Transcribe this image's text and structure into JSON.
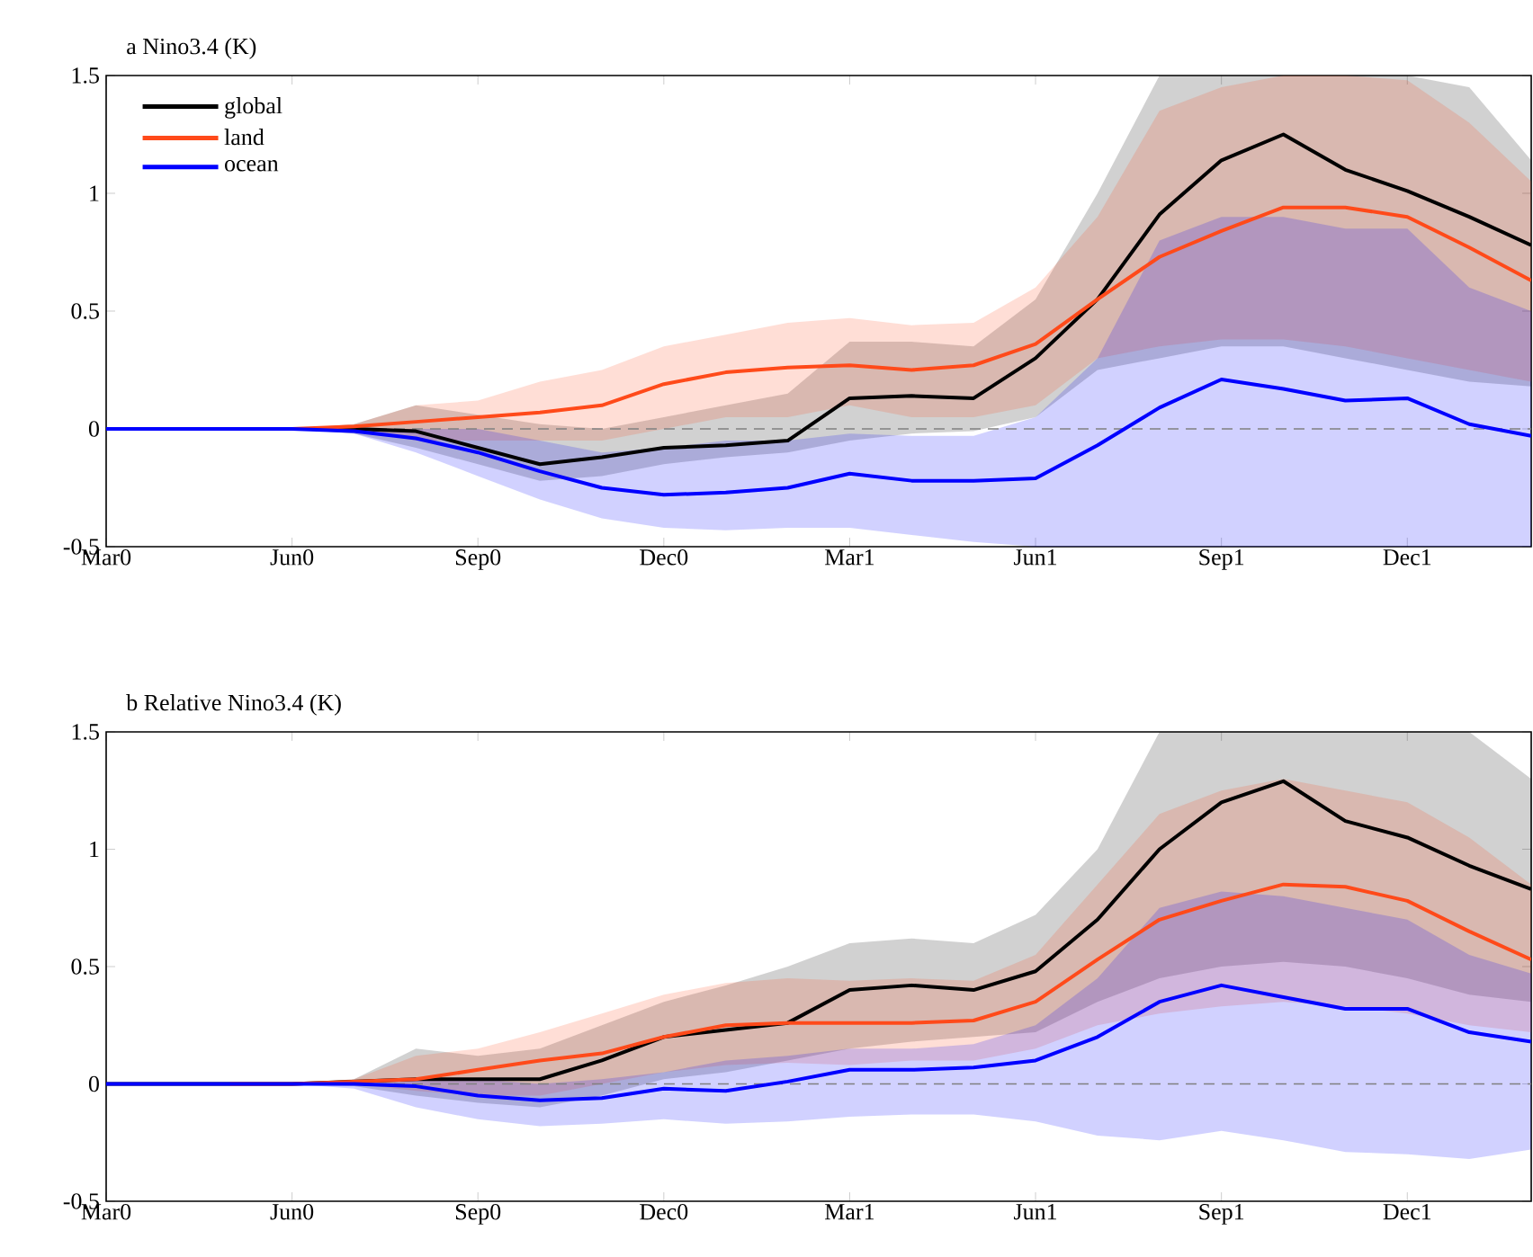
{
  "chart_data": [
    {
      "type": "line",
      "title": "a Nino3.4 (K)",
      "categories": [
        "Mar0",
        null,
        null,
        "Jun0",
        null,
        null,
        "Sep0",
        null,
        null,
        "Dec0",
        null,
        null,
        "Mar1",
        null,
        null,
        "Jun1",
        null,
        null,
        "Sep1",
        null,
        null,
        "Dec1",
        null,
        null
      ],
      "ylim": [
        -0.5,
        1.5
      ],
      "yticks": [
        -0.5,
        0,
        0.5,
        1,
        1.5
      ],
      "legend": "top left",
      "grid": false,
      "marker": "none",
      "line_style": "solid",
      "ref_lines": [
        {
          "axis": "y",
          "value": 0,
          "color": "#808080",
          "line_style": "dashed"
        }
      ],
      "series": [
        {
          "name": "global",
          "color": "#000000",
          "values": [
            0,
            0,
            0,
            0,
            0,
            -0.01,
            -0.08,
            -0.15,
            -0.12,
            -0.08,
            -0.07,
            -0.05,
            0.13,
            0.14,
            0.13,
            0.3,
            0.55,
            0.91,
            1.14,
            1.25,
            1.1,
            1.01,
            0.9,
            0.78
          ],
          "upper": [
            0,
            0,
            0,
            0,
            0.02,
            0.1,
            0.06,
            0.02,
            0.0,
            0.05,
            0.1,
            0.15,
            0.37,
            0.37,
            0.35,
            0.55,
            1.0,
            1.5,
            1.5,
            1.5,
            1.5,
            1.5,
            1.45,
            1.14
          ],
          "lower": [
            0,
            0,
            0,
            0,
            -0.02,
            -0.08,
            -0.15,
            -0.22,
            -0.2,
            -0.15,
            -0.12,
            -0.1,
            -0.05,
            -0.02,
            -0.01,
            0.05,
            0.25,
            0.3,
            0.35,
            0.35,
            0.3,
            0.25,
            0.2,
            0.18
          ]
        },
        {
          "name": "land",
          "color": "#ff4a1a",
          "values": [
            null,
            null,
            0,
            0,
            0.01,
            0.03,
            0.05,
            0.07,
            0.1,
            0.19,
            0.24,
            0.26,
            0.27,
            0.25,
            0.27,
            0.36,
            0.55,
            0.73,
            0.84,
            0.94,
            0.94,
            0.9,
            0.77,
            0.63
          ],
          "upper": [
            0,
            0,
            0,
            0,
            0.02,
            0.1,
            0.12,
            0.2,
            0.25,
            0.35,
            0.4,
            0.45,
            0.47,
            0.44,
            0.45,
            0.6,
            0.9,
            1.35,
            1.45,
            1.5,
            1.5,
            1.48,
            1.3,
            1.05
          ],
          "lower": [
            0,
            0,
            0,
            0,
            0,
            -0.05,
            -0.05,
            -0.05,
            -0.05,
            0,
            0.05,
            0.05,
            0.1,
            0.05,
            0.05,
            0.1,
            0.3,
            0.35,
            0.38,
            0.38,
            0.35,
            0.3,
            0.25,
            0.2
          ]
        },
        {
          "name": "ocean",
          "color": "#0000ff",
          "values": [
            0,
            0,
            0,
            0,
            -0.01,
            -0.04,
            -0.1,
            -0.18,
            -0.25,
            -0.28,
            -0.27,
            -0.25,
            -0.19,
            -0.22,
            -0.22,
            -0.21,
            -0.07,
            0.09,
            0.21,
            0.17,
            0.12,
            0.13,
            0.02,
            -0.03
          ],
          "upper": [
            0,
            0,
            0,
            0,
            0,
            0,
            0,
            -0.05,
            -0.1,
            -0.08,
            -0.05,
            -0.05,
            -0.02,
            -0.03,
            -0.03,
            0.05,
            0.3,
            0.8,
            0.9,
            0.9,
            0.85,
            0.85,
            0.6,
            0.5
          ],
          "lower": [
            0,
            0,
            0,
            0,
            -0.02,
            -0.1,
            -0.2,
            -0.3,
            -0.38,
            -0.42,
            -0.43,
            -0.42,
            -0.42,
            -0.45,
            -0.48,
            -0.5,
            -0.5,
            -0.5,
            -0.5,
            -0.5,
            -0.5,
            -0.5,
            -0.5,
            -0.5
          ]
        }
      ]
    },
    {
      "type": "line",
      "title": "b Relative Nino3.4 (K)",
      "categories": [
        "Mar0",
        null,
        null,
        "Jun0",
        null,
        null,
        "Sep0",
        null,
        null,
        "Dec0",
        null,
        null,
        "Mar1",
        null,
        null,
        "Jun1",
        null,
        null,
        "Sep1",
        null,
        null,
        "Dec1",
        null,
        null
      ],
      "ylim": [
        -0.5,
        1.5
      ],
      "yticks": [
        -0.5,
        0,
        0.5,
        1,
        1.5
      ],
      "grid": false,
      "marker": "none",
      "line_style": "solid",
      "ref_lines": [
        {
          "axis": "y",
          "value": 0,
          "color": "#808080",
          "line_style": "dashed"
        }
      ],
      "series": [
        {
          "color": "#000000",
          "values": [
            0,
            0,
            0,
            0,
            null,
            0.02,
            0.02,
            0.02,
            0.1,
            0.2,
            0.23,
            0.26,
            0.4,
            0.42,
            0.4,
            0.48,
            0.7,
            1.0,
            1.2,
            1.29,
            1.12,
            1.05,
            0.93,
            0.83
          ],
          "upper": [
            0,
            0,
            0,
            0,
            0.02,
            0.15,
            0.12,
            0.15,
            0.25,
            0.35,
            0.42,
            0.5,
            0.6,
            0.62,
            0.6,
            0.72,
            1.0,
            1.5,
            1.5,
            1.5,
            1.5,
            1.5,
            1.5,
            1.3
          ],
          "lower": [
            0,
            0,
            0,
            0,
            -0.01,
            -0.05,
            -0.08,
            -0.1,
            -0.05,
            0.02,
            0.05,
            0.1,
            0.15,
            0.18,
            0.2,
            0.22,
            0.35,
            0.45,
            0.5,
            0.52,
            0.5,
            0.45,
            0.38,
            0.35
          ]
        },
        {
          "color": "#ff4a1a",
          "values": [
            null,
            null,
            0,
            0,
            0.01,
            0.02,
            0.06,
            0.1,
            0.13,
            0.2,
            0.25,
            0.26,
            0.26,
            0.26,
            0.27,
            0.35,
            0.53,
            0.7,
            0.78,
            0.85,
            0.84,
            0.78,
            0.65,
            0.53
          ],
          "upper": [
            0,
            0,
            0,
            0,
            0.02,
            0.12,
            0.15,
            0.22,
            0.3,
            0.38,
            0.43,
            0.45,
            0.44,
            0.45,
            0.44,
            0.55,
            0.85,
            1.15,
            1.25,
            1.3,
            1.25,
            1.2,
            1.05,
            0.85
          ],
          "lower": [
            0,
            0,
            0,
            0,
            0,
            -0.03,
            -0.05,
            -0.05,
            0,
            0.05,
            0.08,
            0.09,
            0.08,
            0.1,
            0.1,
            0.15,
            0.25,
            0.3,
            0.33,
            0.35,
            0.33,
            0.3,
            0.25,
            0.22
          ]
        },
        {
          "color": "#0000ff",
          "values": [
            0,
            0,
            0,
            0,
            0,
            -0.01,
            -0.05,
            -0.07,
            -0.06,
            -0.02,
            -0.03,
            0.01,
            0.06,
            0.06,
            0.07,
            0.1,
            0.2,
            0.35,
            0.42,
            0.37,
            0.32,
            0.32,
            0.22,
            0.18
          ],
          "upper": [
            0,
            0,
            0,
            0,
            0,
            0.02,
            0.02,
            0,
            0.02,
            0.05,
            0.1,
            0.12,
            0.15,
            0.15,
            0.17,
            0.25,
            0.45,
            0.75,
            0.82,
            0.8,
            0.75,
            0.7,
            0.55,
            0.47
          ],
          "lower": [
            0,
            0,
            0,
            0,
            -0.02,
            -0.1,
            -0.15,
            -0.18,
            -0.17,
            -0.15,
            -0.17,
            -0.16,
            -0.14,
            -0.13,
            -0.13,
            -0.16,
            -0.22,
            -0.24,
            -0.2,
            -0.24,
            -0.29,
            -0.3,
            -0.32,
            -0.28
          ]
        }
      ]
    }
  ]
}
